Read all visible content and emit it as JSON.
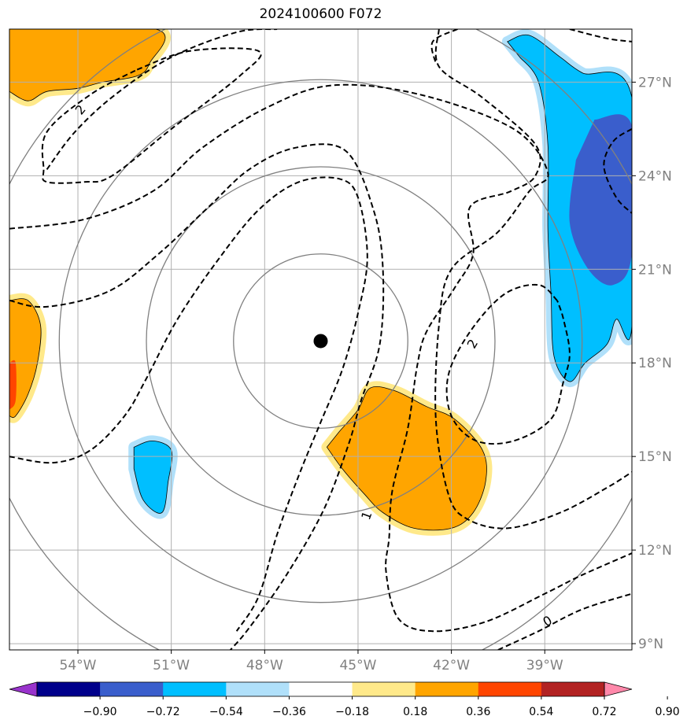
{
  "chart_data": {
    "type": "heatmap",
    "title": "2024100600 F072",
    "xlim": [
      -56.2,
      -36.2
    ],
    "ylim": [
      8.8,
      28.7
    ],
    "x_ticks": [
      -54,
      -51,
      -48,
      -45,
      -42,
      -39
    ],
    "x_tick_labels": [
      "54°W",
      "51°W",
      "48°W",
      "45°W",
      "42°W",
      "39°W"
    ],
    "y_ticks": [
      9,
      12,
      15,
      18,
      21,
      24,
      27
    ],
    "y_tick_labels": [
      "9°N",
      "12°N",
      "15°N",
      "18°N",
      "21°N",
      "24°N",
      "27°N"
    ],
    "grid": true,
    "center": {
      "lon": -46.2,
      "lat": 18.7
    },
    "range_ring_radius_deg": [
      2.8,
      5.6,
      8.4,
      11.2
    ],
    "contour_labels": [
      "2",
      "2",
      "1",
      "0"
    ],
    "colorbar": {
      "ticks": [
        "−0.90",
        "−0.72",
        "−0.54",
        "−0.36",
        "−0.18",
        "0.18",
        "0.36",
        "0.54",
        "0.72",
        "0.90"
      ],
      "colors": [
        "#9933cc",
        "#00008b",
        "#3a5ecc",
        "#00bfff",
        "#b0e0fa",
        "#ffffff",
        "#ffe98a",
        "#ffa500",
        "#ff4500",
        "#b22222",
        "#ff88aa"
      ]
    },
    "filled_regions": [
      {
        "name": "orange-top-left",
        "level": 0.54,
        "color": "#ffa500",
        "polygon": [
          [
            -56.2,
            28.7
          ],
          [
            -51.5,
            28.7
          ],
          [
            -51.7,
            27.6
          ],
          [
            -52.1,
            27.2
          ],
          [
            -53.2,
            27.0
          ],
          [
            -54.0,
            26.8
          ],
          [
            -55.0,
            26.7
          ],
          [
            -55.6,
            26.4
          ],
          [
            -56.2,
            26.7
          ]
        ]
      },
      {
        "name": "orange-south-center",
        "level": 0.54,
        "color": "#ffa500",
        "polygon": [
          [
            -45.6,
            15.8
          ],
          [
            -45.0,
            16.5
          ],
          [
            -44.6,
            17.2
          ],
          [
            -43.8,
            17.1
          ],
          [
            -42.8,
            16.6
          ],
          [
            -41.9,
            16.2
          ],
          [
            -41.0,
            15.2
          ],
          [
            -40.9,
            14.2
          ],
          [
            -41.3,
            13.2
          ],
          [
            -42.0,
            12.7
          ],
          [
            -43.2,
            12.7
          ],
          [
            -44.2,
            13.2
          ],
          [
            -44.8,
            13.8
          ],
          [
            -45.5,
            14.6
          ],
          [
            -46.0,
            15.3
          ]
        ]
      },
      {
        "name": "orange-west-edge",
        "level": 0.54,
        "color": "#ffa500",
        "polygon": [
          [
            -56.2,
            20.0
          ],
          [
            -55.6,
            20.0
          ],
          [
            -55.2,
            19.2
          ],
          [
            -55.3,
            18.0
          ],
          [
            -55.6,
            17.0
          ],
          [
            -56.0,
            16.3
          ],
          [
            -56.2,
            16.3
          ]
        ]
      },
      {
        "name": "red-west-edge",
        "level": 0.72,
        "color": "#ff4500",
        "polygon": [
          [
            -56.2,
            18.0
          ],
          [
            -56.0,
            18.0
          ],
          [
            -56.0,
            16.8
          ],
          [
            -56.2,
            16.5
          ]
        ]
      },
      {
        "name": "blue-east",
        "level": -0.54,
        "color": "#00bfff",
        "polygon": [
          [
            -40.2,
            28.3
          ],
          [
            -39.5,
            28.5
          ],
          [
            -38.5,
            27.8
          ],
          [
            -37.8,
            27.3
          ],
          [
            -36.2,
            26.5
          ],
          [
            -36.2,
            19.2
          ],
          [
            -36.7,
            19.4
          ],
          [
            -37.0,
            18.6
          ],
          [
            -37.7,
            18.0
          ],
          [
            -38.2,
            17.4
          ],
          [
            -38.7,
            18.2
          ],
          [
            -38.8,
            20.2
          ],
          [
            -38.9,
            22.3
          ],
          [
            -38.9,
            25.0
          ],
          [
            -39.2,
            27.0
          ],
          [
            -39.8,
            27.8
          ]
        ]
      },
      {
        "name": "darkblue-east",
        "level": -0.72,
        "color": "#3a5ecc",
        "polygon": [
          [
            -37.4,
            25.8
          ],
          [
            -36.2,
            25.6
          ],
          [
            -36.2,
            21.5
          ],
          [
            -36.8,
            20.5
          ],
          [
            -37.6,
            21.0
          ],
          [
            -38.2,
            22.5
          ],
          [
            -38.0,
            24.5
          ]
        ]
      },
      {
        "name": "blue-southwest",
        "level": -0.54,
        "color": "#00bfff",
        "polygon": [
          [
            -52.2,
            15.3
          ],
          [
            -51.6,
            15.5
          ],
          [
            -51.0,
            15.2
          ],
          [
            -51.1,
            14.2
          ],
          [
            -51.3,
            13.2
          ],
          [
            -51.9,
            13.6
          ],
          [
            -52.2,
            14.6
          ]
        ]
      }
    ],
    "dashed_contours": [
      {
        "label": "2",
        "points": [
          [
            -55.0,
            24.2
          ],
          [
            -54.1,
            25.4
          ],
          [
            -52.8,
            26.6
          ],
          [
            -51.0,
            27.8
          ],
          [
            -48.9,
            28.6
          ],
          [
            -47.6,
            28.7
          ]
        ]
      },
      {
        "label": "2",
        "points": [
          [
            -52.1,
            27.4
          ],
          [
            -50.4,
            28.0
          ],
          [
            -48.2,
            28.0
          ],
          [
            -48.8,
            27.2
          ],
          [
            -51.0,
            25.5
          ],
          [
            -52.9,
            24.0
          ],
          [
            -53.8,
            23.8
          ],
          [
            -55.0,
            23.8
          ],
          [
            -55.1,
            24.2
          ],
          [
            -55.0,
            25.4
          ],
          [
            -53.6,
            26.6
          ],
          [
            -52.1,
            27.4
          ]
        ]
      },
      {
        "label": "",
        "points": [
          [
            -56.2,
            22.3
          ],
          [
            -53.8,
            22.6
          ],
          [
            -51.6,
            23.5
          ],
          [
            -50.0,
            24.9
          ],
          [
            -47.9,
            26.2
          ],
          [
            -45.8,
            26.9
          ],
          [
            -43.0,
            26.6
          ],
          [
            -40.0,
            25.5
          ],
          [
            -38.9,
            24.1
          ],
          [
            -39.5,
            23.5
          ],
          [
            -40.5,
            22.2
          ],
          [
            -42.0,
            21.0
          ],
          [
            -42.4,
            19.2
          ],
          [
            -42.5,
            16.2
          ],
          [
            -42.1,
            13.8
          ],
          [
            -41.5,
            13.0
          ],
          [
            -40.2,
            12.7
          ],
          [
            -38.5,
            13.2
          ],
          [
            -37.0,
            14.0
          ],
          [
            -36.2,
            14.5
          ]
        ]
      },
      {
        "label": "",
        "points": [
          [
            -56.2,
            20.0
          ],
          [
            -55.0,
            19.8
          ],
          [
            -53.0,
            20.3
          ],
          [
            -51.4,
            21.5
          ],
          [
            -49.8,
            23.0
          ],
          [
            -48.5,
            24.2
          ],
          [
            -47.0,
            24.9
          ],
          [
            -45.4,
            24.8
          ],
          [
            -44.5,
            22.9
          ],
          [
            -44.2,
            21.0
          ],
          [
            -44.3,
            18.6
          ],
          [
            -44.9,
            16.8
          ],
          [
            -45.3,
            15.4
          ],
          [
            -46.1,
            13.3
          ],
          [
            -47.3,
            11.2
          ],
          [
            -48.5,
            9.5
          ],
          [
            -49.1,
            8.8
          ]
        ]
      },
      {
        "label": "1",
        "points": [
          [
            -42.4,
            28.7
          ],
          [
            -42.4,
            27.5
          ],
          [
            -41.0,
            26.5
          ],
          [
            -39.3,
            25.0
          ],
          [
            -39.3,
            24.0
          ],
          [
            -40.1,
            23.5
          ],
          [
            -41.4,
            23.0
          ],
          [
            -41.3,
            21.5
          ],
          [
            -41.9,
            20.4
          ],
          [
            -42.8,
            19.0
          ],
          [
            -43.1,
            17.9
          ],
          [
            -43.4,
            15.9
          ],
          [
            -43.9,
            13.9
          ],
          [
            -44.0,
            12.4
          ],
          [
            -44.1,
            11.3
          ],
          [
            -43.7,
            9.8
          ],
          [
            -42.6,
            9.4
          ],
          [
            -40.9,
            9.7
          ],
          [
            -39.0,
            10.6
          ],
          [
            -37.8,
            11.2
          ],
          [
            -36.2,
            11.9
          ]
        ]
      },
      {
        "label": "",
        "points": [
          [
            -56.2,
            15.0
          ],
          [
            -54.8,
            14.8
          ],
          [
            -53.6,
            15.2
          ],
          [
            -52.5,
            16.3
          ],
          [
            -51.8,
            17.5
          ],
          [
            -50.8,
            19.4
          ],
          [
            -49.5,
            21.3
          ],
          [
            -48.2,
            22.9
          ],
          [
            -46.9,
            23.8
          ],
          [
            -45.6,
            23.9
          ],
          [
            -45.0,
            23.3
          ],
          [
            -44.7,
            21.4
          ],
          [
            -45.0,
            19.6
          ],
          [
            -45.5,
            17.8
          ],
          [
            -46.2,
            16.1
          ],
          [
            -46.9,
            14.4
          ],
          [
            -47.6,
            12.5
          ],
          [
            -48.2,
            10.5
          ],
          [
            -48.9,
            9.4
          ]
        ]
      },
      {
        "label": "2",
        "points": [
          [
            -38.6,
            20.0
          ],
          [
            -39.2,
            20.5
          ],
          [
            -40.3,
            20.2
          ],
          [
            -41.4,
            19.0
          ],
          [
            -42.1,
            17.6
          ],
          [
            -42.0,
            16.3
          ],
          [
            -41.2,
            15.5
          ],
          [
            -40.0,
            15.5
          ],
          [
            -38.8,
            16.2
          ],
          [
            -38.4,
            17.4
          ],
          [
            -38.2,
            18.3
          ],
          [
            -38.4,
            19.4
          ],
          [
            -38.6,
            20.0
          ]
        ]
      },
      {
        "label": "",
        "points": [
          [
            -36.2,
            25.5
          ],
          [
            -36.8,
            25.1
          ],
          [
            -37.1,
            24.3
          ],
          [
            -36.7,
            23.3
          ],
          [
            -36.2,
            22.8
          ]
        ]
      },
      {
        "label": "0",
        "points": [
          [
            -40.5,
            8.8
          ],
          [
            -39.2,
            9.4
          ],
          [
            -37.8,
            10.1
          ],
          [
            -36.2,
            10.6
          ]
        ]
      },
      {
        "label": "",
        "points": [
          [
            -41.8,
            28.7
          ],
          [
            -42.6,
            28.3
          ],
          [
            -42.5,
            27.6
          ]
        ]
      },
      {
        "label": "",
        "points": [
          [
            -38.2,
            28.7
          ],
          [
            -37.0,
            28.4
          ],
          [
            -36.2,
            28.3
          ]
        ]
      }
    ]
  }
}
